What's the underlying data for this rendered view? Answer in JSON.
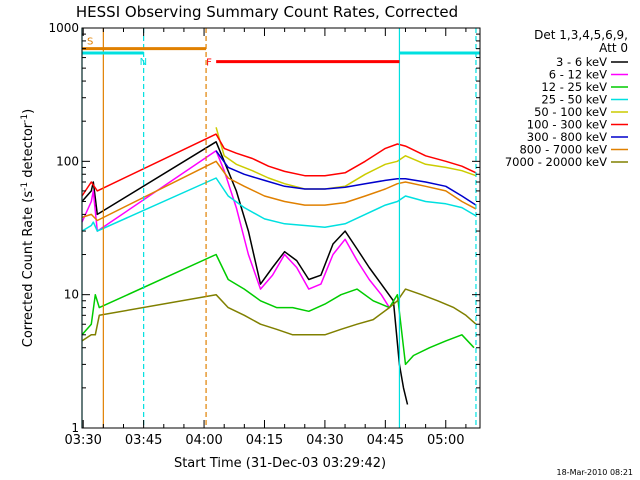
{
  "chart_data": {
    "type": "line",
    "title": "HESSI Observing Summary Count Rates, Corrected",
    "xlabel": "Start Time (31-Dec-03 03:29:42)",
    "ylabel_main": "Corrected Count Rate (s",
    "ylabel_sup1": "-1",
    "ylabel_mid": " detector",
    "ylabel_sup2": "-1",
    "ylabel_end": ")",
    "yscale": "log",
    "ylim": [
      1,
      1000
    ],
    "xlim": [
      "03:29:42",
      "05:08:30"
    ],
    "y_ticks": [
      1,
      10,
      100,
      1000
    ],
    "y_tick_labels": [
      "1",
      "10",
      "100",
      "1000"
    ],
    "x_ticks": [
      "03:30",
      "03:45",
      "04:00",
      "04:15",
      "04:30",
      "04:45",
      "05:00"
    ],
    "grid": false,
    "legend_title_1": "Det 1,3,4,5,6,9,",
    "legend_title_2": "Att 0",
    "legend_position": "right",
    "footer": "18-Mar-2010 08:21",
    "series": [
      {
        "name": "3 - 6 keV",
        "color": "#000000",
        "x": [
          "03:29:42",
          "03:32:00",
          "03:32:30",
          "03:33:30",
          "04:03:00",
          "04:05:00",
          "04:08:00",
          "04:11:00",
          "04:14:00",
          "04:17:00",
          "04:20:00",
          "04:23:00",
          "04:26:00",
          "04:29:00",
          "04:32:00",
          "04:35:00",
          "04:38:00",
          "04:41:00",
          "04:44:00",
          "04:47:00",
          "04:48:30",
          "04:49:30",
          "04:50:30"
        ],
        "y": [
          50,
          60,
          70,
          40,
          140,
          100,
          60,
          30,
          12,
          16,
          21,
          18,
          13,
          14,
          24,
          30,
          22,
          16,
          12,
          9,
          3,
          2,
          1.5
        ]
      },
      {
        "name": "6 - 12 keV",
        "color": "#ff00ff",
        "x": [
          "03:29:42",
          "03:32:00",
          "03:32:30",
          "03:33:30",
          "04:03:00",
          "04:05:00",
          "04:08:00",
          "04:11:00",
          "04:14:00",
          "04:17:00",
          "04:20:00",
          "04:23:00",
          "04:26:00",
          "04:29:00",
          "04:32:00",
          "04:35:00",
          "04:38:00",
          "04:41:00",
          "04:44:00",
          "04:46:00"
        ],
        "y": [
          35,
          50,
          60,
          30,
          120,
          85,
          45,
          20,
          11,
          14,
          20,
          16,
          11,
          12,
          20,
          26,
          18,
          13,
          10,
          8
        ]
      },
      {
        "name": "12 - 25 keV",
        "color": "#00cc00",
        "x": [
          "03:29:42",
          "03:32:00",
          "03:33:00",
          "03:34:00",
          "04:03:00",
          "04:06:00",
          "04:10:00",
          "04:14:00",
          "04:18:00",
          "04:22:00",
          "04:26:00",
          "04:30:00",
          "04:34:00",
          "04:38:00",
          "04:42:00",
          "04:46:00",
          "04:48:00",
          "04:50:00",
          "04:52:00",
          "04:56:00",
          "05:00:00",
          "05:04:00",
          "05:07:00"
        ],
        "y": [
          5,
          6,
          10,
          8,
          20,
          13,
          11,
          9,
          8,
          8,
          7.5,
          8.5,
          10,
          11,
          9,
          8,
          10,
          3,
          3.5,
          4,
          4.5,
          5,
          4
        ]
      },
      {
        "name": "25 - 50 keV",
        "color": "#00e0e0",
        "x": [
          "03:29:42",
          "03:32:00",
          "03:32:30",
          "03:33:30",
          "04:03:00",
          "04:06:00",
          "04:10:00",
          "04:15:00",
          "04:20:00",
          "04:25:00",
          "04:30:00",
          "04:35:00",
          "04:40:00",
          "04:45:00",
          "04:48:00",
          "04:50:00",
          "04:55:00",
          "05:00:00",
          "05:04:00",
          "05:07:30"
        ],
        "y": [
          30,
          33,
          35,
          30,
          75,
          55,
          45,
          37,
          34,
          33,
          32,
          34,
          40,
          47,
          50,
          55,
          50,
          48,
          45,
          39
        ]
      },
      {
        "name": "50 - 100 keV",
        "color": "#cccc00",
        "x": [
          "04:03:00",
          "04:05:00",
          "04:08:00",
          "04:12:00",
          "04:16:00",
          "04:20:00",
          "04:25:00",
          "04:30:00",
          "04:35:00",
          "04:40:00",
          "04:45:00",
          "04:48:00",
          "04:50:00",
          "04:55:00",
          "05:00:00",
          "05:04:00",
          "05:07:30"
        ],
        "y": [
          180,
          110,
          95,
          85,
          75,
          68,
          62,
          62,
          65,
          80,
          95,
          100,
          110,
          95,
          90,
          85,
          78
        ]
      },
      {
        "name": "100 - 300 keV",
        "color": "#ff0000",
        "x": [
          "03:29:42",
          "03:32:00",
          "03:33:30",
          "04:03:00",
          "04:05:00",
          "04:08:00",
          "04:12:00",
          "04:16:00",
          "04:20:00",
          "04:25:00",
          "04:30:00",
          "04:35:00",
          "04:40:00",
          "04:45:00",
          "04:48:00",
          "04:50:00",
          "04:55:00",
          "05:00:00",
          "05:04:00",
          "05:07:30"
        ],
        "y": [
          55,
          70,
          60,
          160,
          125,
          115,
          105,
          92,
          84,
          78,
          78,
          82,
          100,
          125,
          135,
          130,
          110,
          100,
          92,
          82
        ]
      },
      {
        "name": "300 - 800 keV",
        "color": "#0000cc",
        "x": [
          "04:03:00",
          "04:06:00",
          "04:10:00",
          "04:15:00",
          "04:20:00",
          "04:25:00",
          "04:30:00",
          "04:35:00",
          "04:40:00",
          "04:45:00",
          "04:48:00",
          "04:50:00",
          "04:55:00",
          "05:00:00",
          "05:04:00",
          "05:07:30"
        ],
        "y": [
          120,
          90,
          80,
          72,
          65,
          62,
          62,
          64,
          68,
          72,
          74,
          74,
          70,
          65,
          55,
          47
        ]
      },
      {
        "name": "800 - 7000 keV",
        "color": "#e08000",
        "x": [
          "03:29:42",
          "03:32:00",
          "03:33:30",
          "04:03:00",
          "04:06:00",
          "04:10:00",
          "04:15:00",
          "04:20:00",
          "04:25:00",
          "04:30:00",
          "04:35:00",
          "04:40:00",
          "04:45:00",
          "04:48:00",
          "04:50:00",
          "04:55:00",
          "05:00:00",
          "05:04:00",
          "05:07:30"
        ],
        "y": [
          38,
          40,
          36,
          100,
          75,
          65,
          55,
          50,
          47,
          47,
          49,
          55,
          62,
          68,
          70,
          65,
          60,
          50,
          44
        ]
      },
      {
        "name": "7000 - 20000 keV",
        "color": "#808000",
        "x": [
          "03:29:42",
          "03:32:00",
          "03:33:00",
          "03:34:00",
          "04:03:00",
          "04:06:00",
          "04:10:00",
          "04:14:00",
          "04:18:00",
          "04:22:00",
          "04:26:00",
          "04:30:00",
          "04:34:00",
          "04:38:00",
          "04:42:00",
          "04:46:00",
          "04:48:00",
          "04:50:00",
          "04:54:00",
          "04:58:00",
          "05:02:00",
          "05:05:00",
          "05:07:30"
        ],
        "y": [
          4.5,
          5,
          5,
          7,
          10,
          8,
          7,
          6,
          5.5,
          5,
          5,
          5,
          5.5,
          6,
          6.5,
          8,
          9,
          11,
          10,
          9,
          8,
          7,
          6
        ]
      }
    ],
    "annotations": [
      {
        "label": "S",
        "color": "#e08000",
        "x_start": "03:29:42",
        "x_end": "04:00:30",
        "y": 700
      },
      {
        "label": "N",
        "color": "#00e0e0",
        "x_start": "03:29:42",
        "x_end": "03:45:00",
        "y": 650
      },
      {
        "label": "F",
        "color": "#ff0000",
        "x_start": "04:03:00",
        "x_end": "04:48:30",
        "y": 560
      },
      {
        "label": "",
        "color": "#00e0e0",
        "x_start": "04:48:30",
        "x_end": "05:08:30",
        "y": 650
      }
    ],
    "vlines": [
      {
        "x": "03:29:42",
        "color": "#00e0e0",
        "style": "solid"
      },
      {
        "x": "03:35:00",
        "color": "#e08000",
        "style": "solid"
      },
      {
        "x": "03:45:00",
        "color": "#00e0e0",
        "style": "dashed"
      },
      {
        "x": "04:00:30",
        "color": "#e08000",
        "style": "dashed"
      },
      {
        "x": "04:48:30",
        "color": "#00e0e0",
        "style": "solid"
      },
      {
        "x": "05:07:30",
        "color": "#00e0e0",
        "style": "dashed"
      }
    ]
  }
}
